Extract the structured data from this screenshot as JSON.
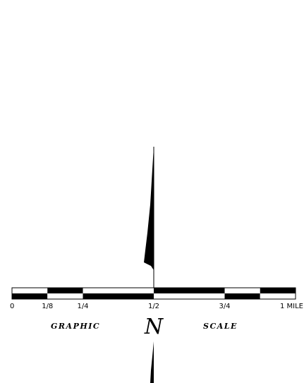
{
  "scale_bar": {
    "unit": "MILE",
    "max_value": 1,
    "segments": [
      {
        "from": 0,
        "to": 0.125
      },
      {
        "from": 0.125,
        "to": 0.25
      },
      {
        "from": 0.25,
        "to": 0.5
      },
      {
        "from": 0.5,
        "to": 0.75
      },
      {
        "from": 0.75,
        "to": 0.875
      },
      {
        "from": 0.875,
        "to": 1
      }
    ],
    "tick_labels": [
      {
        "value": 0,
        "text": "0"
      },
      {
        "value": 0.125,
        "text": "1/8"
      },
      {
        "value": 0.25,
        "text": "1/4"
      },
      {
        "value": 0.5,
        "text": "1/2"
      },
      {
        "value": 0.75,
        "text": "3/4"
      },
      {
        "value": 1,
        "text": "1 MILE"
      }
    ]
  },
  "caption": {
    "left": "GRAPHIC",
    "right": "SCALE"
  },
  "north_arrow": {
    "letter": "N"
  },
  "colors": {
    "ink": "#000000",
    "paper": "#ffffff"
  }
}
